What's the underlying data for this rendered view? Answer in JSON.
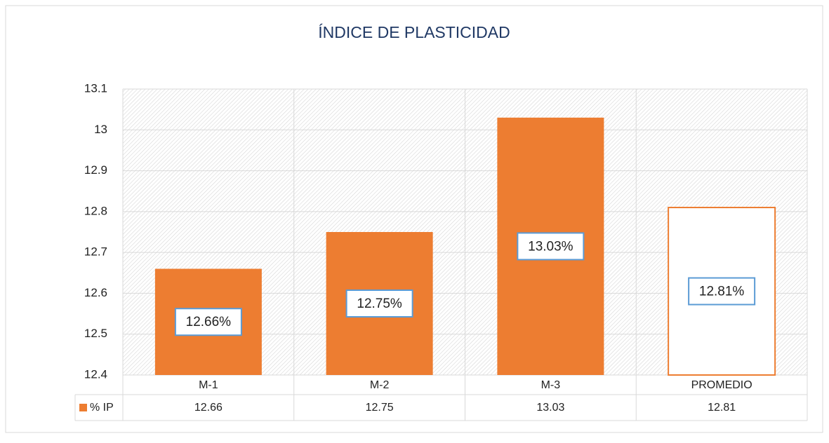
{
  "chart_data": {
    "type": "bar",
    "title": "ÍNDICE DE PLASTICIDAD",
    "categories": [
      "M-1",
      "M-2",
      "M-3",
      "PROMEDIO"
    ],
    "series": [
      {
        "name": "% IP",
        "color": "#ed7d31",
        "values": [
          12.66,
          12.75,
          13.03,
          12.81
        ],
        "value_labels": [
          "12.66%",
          "12.75%",
          "13.03%",
          "12.81%"
        ],
        "fills": [
          "#ed7d31",
          "#ed7d31",
          "#ed7d31",
          "#ffffff"
        ]
      }
    ],
    "ylim": [
      12.4,
      13.1
    ],
    "yticks": [
      12.4,
      12.5,
      12.6,
      12.7,
      12.8,
      12.9,
      13,
      13.1
    ],
    "grid": true,
    "data_table": true
  }
}
